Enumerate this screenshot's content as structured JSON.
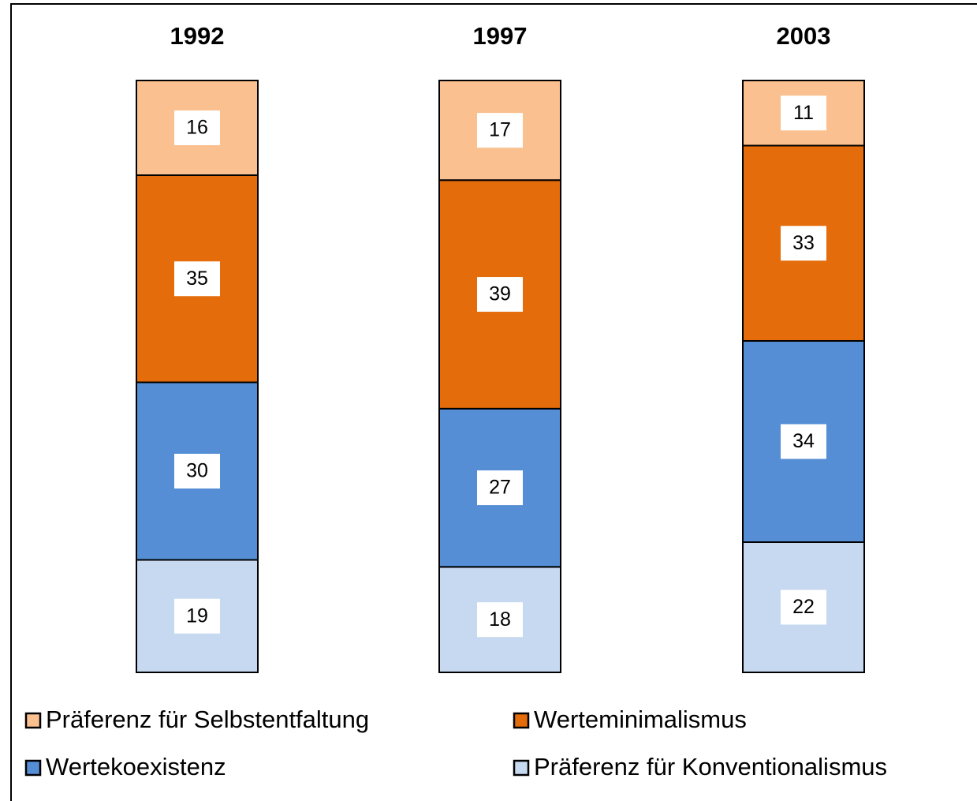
{
  "chart_data": {
    "type": "bar",
    "stacked": "percent",
    "categories": [
      "1992",
      "1997",
      "2003"
    ],
    "series": [
      {
        "name": "Präferenz für Selbstentfaltung",
        "color": "#fac090",
        "values": [
          16,
          17,
          11
        ]
      },
      {
        "name": "Werteminimalismus",
        "color": "#e46c0a",
        "values": [
          35,
          39,
          33
        ]
      },
      {
        "name": "Wertekoexistenz",
        "color": "#558ed5",
        "values": [
          30,
          27,
          34
        ]
      },
      {
        "name": "Präferenz für Konventionalismus",
        "color": "#c6d9f0",
        "values": [
          19,
          18,
          22
        ]
      }
    ],
    "legend": "bottom"
  }
}
